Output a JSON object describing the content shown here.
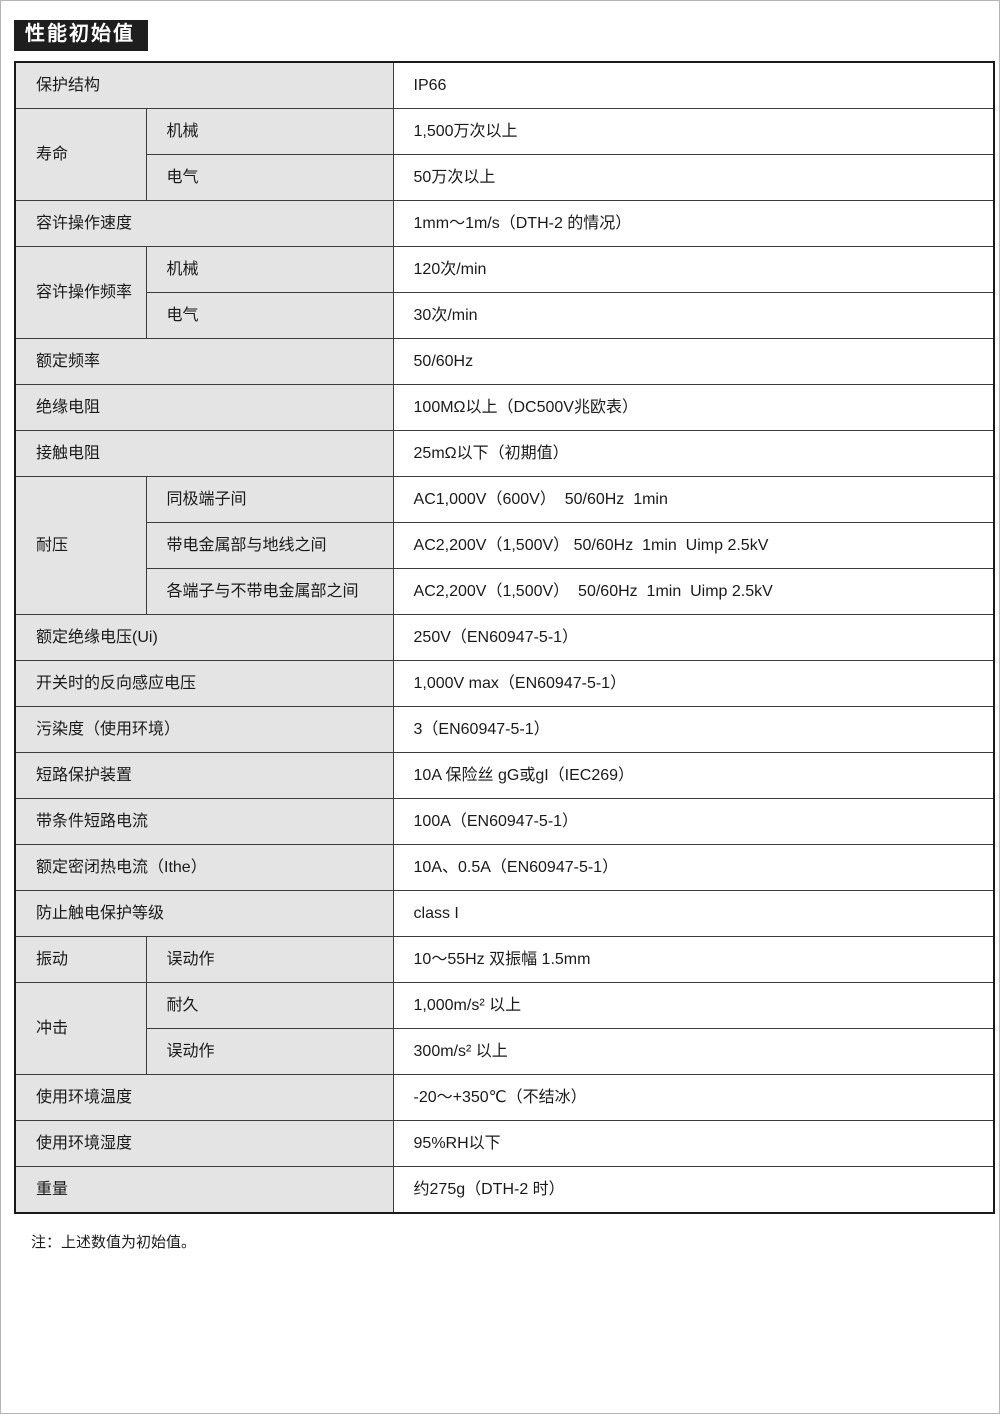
{
  "title": "性能初始值",
  "note": "注：上述数值为初始值。",
  "table": {
    "rows": [
      {
        "type": "simple",
        "label": "保护结构",
        "value": "IP66"
      },
      {
        "type": "group",
        "label": "寿命",
        "items": [
          {
            "sub": "机械",
            "value": "1,500万次以上"
          },
          {
            "sub": "电气",
            "value": "50万次以上"
          }
        ]
      },
      {
        "type": "simple",
        "label": "容许操作速度",
        "value": "1mm〜1m/s（DTH-2 的情况）"
      },
      {
        "type": "group",
        "label": "容许操作频率",
        "items": [
          {
            "sub": "机械",
            "value": "120次/min"
          },
          {
            "sub": "电气",
            "value": "30次/min"
          }
        ]
      },
      {
        "type": "simple",
        "label": "额定频率",
        "value": "50/60Hz"
      },
      {
        "type": "simple",
        "label": "绝缘电阻",
        "value": "100MΩ以上（DC500V兆欧表）"
      },
      {
        "type": "simple",
        "label": "接触电阻",
        "value": "25mΩ以下（初期值）"
      },
      {
        "type": "group",
        "label": "耐压",
        "items": [
          {
            "sub": "同极端子间",
            "value": "AC1,000V（600V）  50/60Hz  1min"
          },
          {
            "sub": "带电金属部与地线之间",
            "value": "AC2,200V（1,500V） 50/60Hz  1min  Uimp 2.5kV"
          },
          {
            "sub": "各端子与不带电金属部之间",
            "value": "AC2,200V（1,500V）  50/60Hz  1min  Uimp 2.5kV"
          }
        ]
      },
      {
        "type": "simple",
        "label": "额定绝缘电压(Ui)",
        "value": "250V（EN60947-5-1）"
      },
      {
        "type": "simple",
        "label": "开关时的反向感应电压",
        "value": "1,000V max（EN60947-5-1）"
      },
      {
        "type": "simple",
        "label": "污染度（使用环境）",
        "value": "3（EN60947-5-1）"
      },
      {
        "type": "simple",
        "label": "短路保护装置",
        "value": "10A 保险丝 gG或gI（IEC269）"
      },
      {
        "type": "simple",
        "label": "带条件短路电流",
        "value": "100A（EN60947-5-1）"
      },
      {
        "type": "simple",
        "label": "额定密闭热电流（Ithe）",
        "value": "10A、0.5A（EN60947-5-1）"
      },
      {
        "type": "simple",
        "label": "防止触电保护等级",
        "value": "class I"
      },
      {
        "type": "group",
        "label": "振动",
        "items": [
          {
            "sub": "误动作",
            "value": "10〜55Hz 双振幅 1.5mm"
          }
        ]
      },
      {
        "type": "group",
        "label": "冲击",
        "items": [
          {
            "sub": "耐久",
            "value": "1,000m/s² 以上"
          },
          {
            "sub": "误动作",
            "value": "300m/s² 以上"
          }
        ]
      },
      {
        "type": "simple",
        "label": "使用环境温度",
        "value": "-20〜+350℃（不结冰）"
      },
      {
        "type": "simple",
        "label": "使用环境湿度",
        "value": "95%RH以下"
      },
      {
        "type": "simple",
        "label": "重量",
        "value": "约275g（DTH-2 时）"
      }
    ]
  },
  "colors": {
    "title_bg": "#1e1e1e",
    "title_text": "#ffffff",
    "label_bg": "#e4e4e4",
    "value_bg": "#ffffff",
    "border": "#3c3c3c",
    "text": "#1a1a1a"
  }
}
